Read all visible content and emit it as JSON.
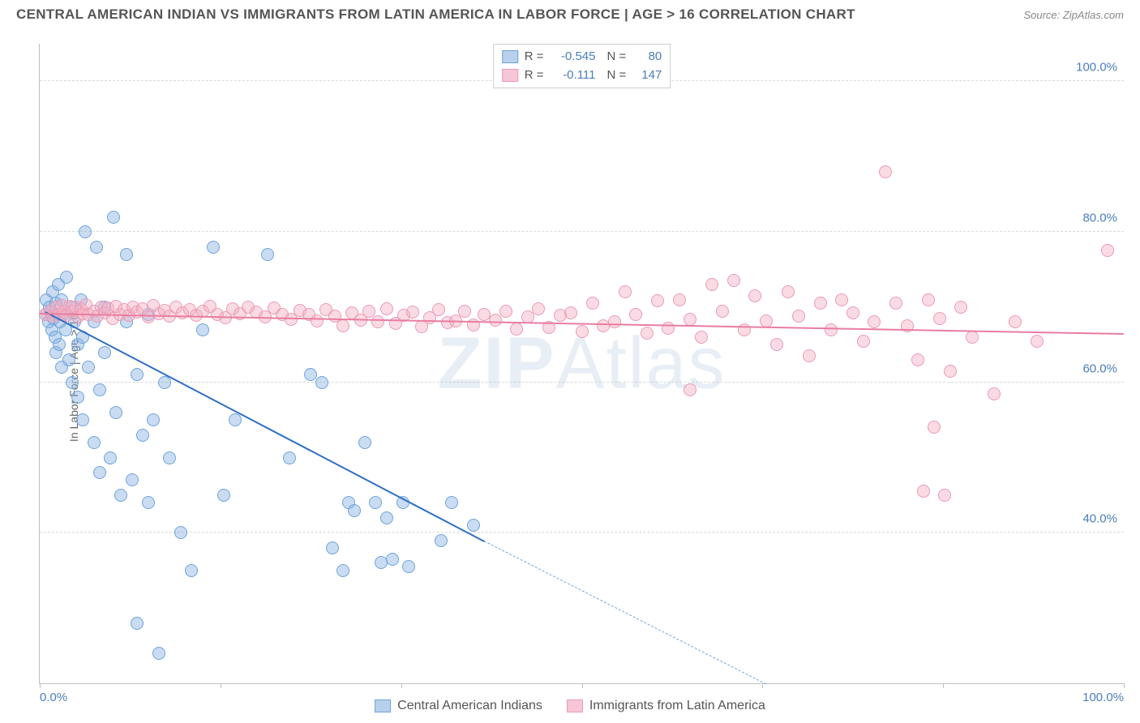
{
  "header": {
    "title": "CENTRAL AMERICAN INDIAN VS IMMIGRANTS FROM LATIN AMERICA IN LABOR FORCE | AGE > 16 CORRELATION CHART",
    "source": "Source: ZipAtlas.com"
  },
  "watermark": {
    "zip": "ZIP",
    "atlas": "Atlas"
  },
  "chart": {
    "type": "scatter-correlation",
    "ylabel": "In Labor Force | Age > 16",
    "background_color": "#ffffff",
    "axis_color": "#bfbfbf",
    "grid_color": "#d9d9d9",
    "tick_label_color": "#4a7ebb",
    "tick_fontsize": 15,
    "xlim": [
      0,
      100
    ],
    "ylim": [
      20,
      105
    ],
    "xticks": [
      0,
      16.67,
      33.33,
      50,
      66.67,
      83.33,
      100
    ],
    "xtick_labels": {
      "0": "0.0%",
      "100": "100.0%"
    },
    "yticks": [
      40,
      60,
      80,
      100
    ],
    "ytick_labels": {
      "40": "40.0%",
      "60": "60.0%",
      "80": "80.0%",
      "100": "100.0%"
    },
    "point_radius": 8,
    "point_stroke_width": 1.2,
    "series": [
      {
        "id": "blue",
        "label": "Central American Indians",
        "R_label": "R =",
        "R": "-0.545",
        "N_label": "N =",
        "N": "80",
        "fill": "rgba(135,178,226,0.45)",
        "stroke": "#6fa4dc",
        "swatch_fill": "#b8d0ec",
        "swatch_stroke": "#6fa4dc",
        "trend": {
          "color": "#2f6fc4",
          "x1": 0.5,
          "y1": 69.5,
          "x2": 41,
          "y2": 39,
          "x2_ext": 67,
          "y2_ext": 20
        },
        "points": [
          [
            0.5,
            69
          ],
          [
            0.6,
            71
          ],
          [
            0.8,
            68
          ],
          [
            0.9,
            70
          ],
          [
            1.0,
            69.5
          ],
          [
            1.1,
            67
          ],
          [
            1.2,
            72
          ],
          [
            1.3,
            68.5
          ],
          [
            1.4,
            66
          ],
          [
            1.5,
            70.5
          ],
          [
            1.5,
            64
          ],
          [
            1.7,
            73
          ],
          [
            1.8,
            65
          ],
          [
            1.9,
            68
          ],
          [
            2.0,
            71
          ],
          [
            2.0,
            62
          ],
          [
            2.2,
            69
          ],
          [
            2.4,
            67
          ],
          [
            2.5,
            74
          ],
          [
            2.7,
            63
          ],
          [
            3.0,
            70
          ],
          [
            3.0,
            60
          ],
          [
            3.2,
            68
          ],
          [
            3.5,
            65
          ],
          [
            3.5,
            58
          ],
          [
            3.8,
            71
          ],
          [
            4.0,
            66
          ],
          [
            4.0,
            55
          ],
          [
            4.2,
            80
          ],
          [
            4.5,
            62
          ],
          [
            5.0,
            68
          ],
          [
            5.0,
            52
          ],
          [
            5.2,
            78
          ],
          [
            5.5,
            59
          ],
          [
            5.5,
            48
          ],
          [
            6.0,
            64
          ],
          [
            6.0,
            70
          ],
          [
            6.5,
            50
          ],
          [
            6.8,
            82
          ],
          [
            7.0,
            56
          ],
          [
            7.5,
            45
          ],
          [
            8.0,
            68
          ],
          [
            8.0,
            77
          ],
          [
            8.5,
            47
          ],
          [
            9.0,
            61
          ],
          [
            9.0,
            28
          ],
          [
            9.5,
            53
          ],
          [
            10.0,
            44
          ],
          [
            10.0,
            69
          ],
          [
            10.5,
            55
          ],
          [
            11.0,
            24
          ],
          [
            11.5,
            60
          ],
          [
            12.0,
            50
          ],
          [
            13.0,
            40
          ],
          [
            14.0,
            35
          ],
          [
            15.0,
            67
          ],
          [
            16.0,
            78
          ],
          [
            17.0,
            45
          ],
          [
            18.0,
            55
          ],
          [
            21.0,
            77
          ],
          [
            23.0,
            50
          ],
          [
            25.0,
            61
          ],
          [
            26.0,
            60
          ],
          [
            27.0,
            38
          ],
          [
            28.0,
            35
          ],
          [
            28.5,
            44
          ],
          [
            29.0,
            43
          ],
          [
            30.0,
            52
          ],
          [
            31.0,
            44
          ],
          [
            31.5,
            36
          ],
          [
            32.0,
            42
          ],
          [
            32.5,
            36.5
          ],
          [
            33.5,
            44
          ],
          [
            34.0,
            35.5
          ],
          [
            37.0,
            39
          ],
          [
            38.0,
            44
          ],
          [
            40.0,
            41
          ]
        ]
      },
      {
        "id": "pink",
        "label": "Immigrants from Latin America",
        "R_label": "R =",
        "R": "-0.111",
        "N_label": "N =",
        "N": "147",
        "fill": "rgba(244,176,196,0.45)",
        "stroke": "#eb9ab4",
        "swatch_fill": "#f6c6d6",
        "swatch_stroke": "#eb9ab4",
        "trend": {
          "color": "#e97da0",
          "x1": 0,
          "y1": 69.2,
          "x2": 100,
          "y2": 66.5
        },
        "points": [
          [
            0.5,
            69
          ],
          [
            1.0,
            69.5
          ],
          [
            1.2,
            68.8
          ],
          [
            1.5,
            70
          ],
          [
            1.8,
            69
          ],
          [
            2.0,
            70.2
          ],
          [
            2.2,
            69.3
          ],
          [
            2.5,
            68.9
          ],
          [
            2.8,
            70.1
          ],
          [
            3.0,
            69.4
          ],
          [
            3.3,
            70
          ],
          [
            3.5,
            68.7
          ],
          [
            3.8,
            69.8
          ],
          [
            4.0,
            69.1
          ],
          [
            4.3,
            70.3
          ],
          [
            4.5,
            69
          ],
          [
            5.0,
            69.5
          ],
          [
            5.3,
            68.8
          ],
          [
            5.7,
            70
          ],
          [
            6.0,
            69.2
          ],
          [
            6.3,
            69.9
          ],
          [
            6.7,
            68.5
          ],
          [
            7.0,
            70.1
          ],
          [
            7.4,
            69
          ],
          [
            7.8,
            69.7
          ],
          [
            8.2,
            68.9
          ],
          [
            8.6,
            70
          ],
          [
            9.0,
            69.3
          ],
          [
            9.5,
            69.8
          ],
          [
            10.0,
            68.7
          ],
          [
            10.5,
            70.2
          ],
          [
            11.0,
            69.1
          ],
          [
            11.5,
            69.6
          ],
          [
            12.0,
            68.8
          ],
          [
            12.6,
            70
          ],
          [
            13.2,
            69.2
          ],
          [
            13.8,
            69.7
          ],
          [
            14.4,
            68.9
          ],
          [
            15.0,
            69.4
          ],
          [
            15.7,
            70.1
          ],
          [
            16.4,
            69
          ],
          [
            17.1,
            68.6
          ],
          [
            17.8,
            69.8
          ],
          [
            18.5,
            69.1
          ],
          [
            19.2,
            70
          ],
          [
            20.0,
            69.3
          ],
          [
            20.8,
            68.7
          ],
          [
            21.6,
            69.9
          ],
          [
            22.4,
            69
          ],
          [
            23.2,
            68.4
          ],
          [
            24.0,
            69.6
          ],
          [
            24.8,
            69
          ],
          [
            25.6,
            68.2
          ],
          [
            26.4,
            69.7
          ],
          [
            27.2,
            68.8
          ],
          [
            28.0,
            67.5
          ],
          [
            28.8,
            69.2
          ],
          [
            29.6,
            68.3
          ],
          [
            30.4,
            69.5
          ],
          [
            31.2,
            68.1
          ],
          [
            32.0,
            69.8
          ],
          [
            32.8,
            67.8
          ],
          [
            33.6,
            68.9
          ],
          [
            34.4,
            69.3
          ],
          [
            35.2,
            67.4
          ],
          [
            36.0,
            68.6
          ],
          [
            36.8,
            69.7
          ],
          [
            37.6,
            67.9
          ],
          [
            38.4,
            68.2
          ],
          [
            39.2,
            69.4
          ],
          [
            40.0,
            67.6
          ],
          [
            41.0,
            69
          ],
          [
            42.0,
            68.3
          ],
          [
            43.0,
            69.5
          ],
          [
            44.0,
            67.1
          ],
          [
            45.0,
            68.7
          ],
          [
            46.0,
            69.8
          ],
          [
            47.0,
            67.3
          ],
          [
            48.0,
            68.9
          ],
          [
            49.0,
            69.2
          ],
          [
            50.0,
            66.8
          ],
          [
            51.0,
            70.5
          ],
          [
            52.0,
            67.5
          ],
          [
            53.0,
            68.1
          ],
          [
            54.0,
            72
          ],
          [
            55.0,
            69
          ],
          [
            56.0,
            66.5
          ],
          [
            57.0,
            70.8
          ],
          [
            58.0,
            67.2
          ],
          [
            59.0,
            71
          ],
          [
            60.0,
            68.4
          ],
          [
            60.0,
            59
          ],
          [
            61.0,
            66
          ],
          [
            62.0,
            73
          ],
          [
            63.0,
            69.5
          ],
          [
            64.0,
            73.5
          ],
          [
            65.0,
            67
          ],
          [
            66.0,
            71.5
          ],
          [
            67.0,
            68.2
          ],
          [
            68.0,
            65
          ],
          [
            69.0,
            72
          ],
          [
            70.0,
            68.8
          ],
          [
            71.0,
            63.5
          ],
          [
            72.0,
            70.5
          ],
          [
            73.0,
            67
          ],
          [
            74.0,
            71
          ],
          [
            75.0,
            69.2
          ],
          [
            76.0,
            65.5
          ],
          [
            77.0,
            68
          ],
          [
            78.0,
            88
          ],
          [
            79.0,
            70.5
          ],
          [
            80.0,
            67.5
          ],
          [
            81.0,
            63
          ],
          [
            81.5,
            45.5
          ],
          [
            82.0,
            71
          ],
          [
            82.5,
            54
          ],
          [
            83.0,
            68.5
          ],
          [
            83.5,
            45
          ],
          [
            84.0,
            61.5
          ],
          [
            85.0,
            70
          ],
          [
            86.0,
            66
          ],
          [
            88.0,
            58.5
          ],
          [
            90.0,
            68
          ],
          [
            92.0,
            65.5
          ],
          [
            98.5,
            77.5
          ]
        ]
      }
    ],
    "legend_bottom": [
      {
        "swatch_fill": "#b8d0ec",
        "swatch_stroke": "#6fa4dc",
        "label": "Central American Indians"
      },
      {
        "swatch_fill": "#f6c6d6",
        "swatch_stroke": "#eb9ab4",
        "label": "Immigrants from Latin America"
      }
    ]
  }
}
